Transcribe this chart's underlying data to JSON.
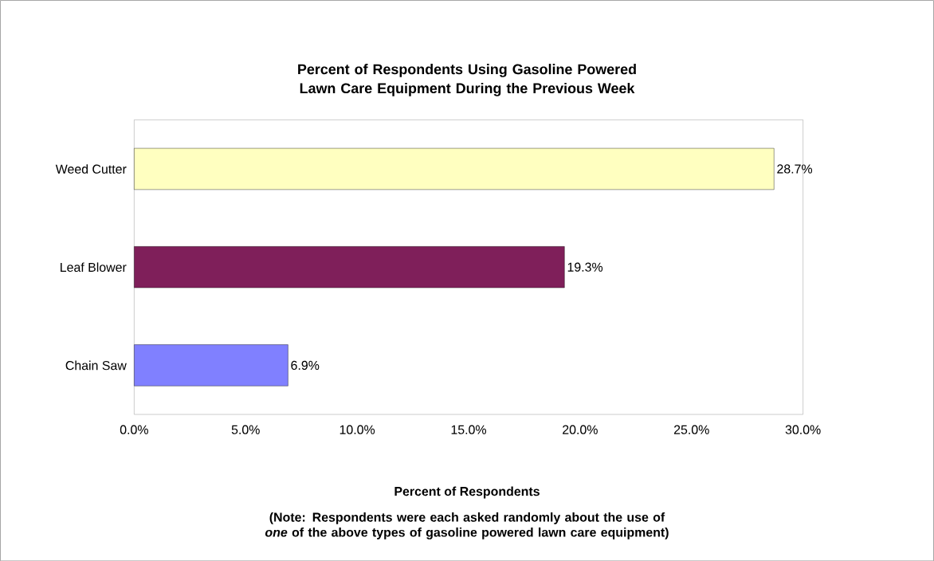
{
  "chart_data": {
    "type": "bar",
    "orientation": "horizontal",
    "title": "Percent of Respondents Using Gasoline Powered Lawn Care Equipment During the Previous Week",
    "xlabel": "Percent of Respondents",
    "annotations": [
      "(Note: Respondents were each asked randomly about the use of *one* of the above types of gasoline powered lawn care equipment)"
    ],
    "categories": [
      "Weed Cutter",
      "Leaf Blower",
      "Chain Saw"
    ],
    "values": [
      28.7,
      19.3,
      6.9
    ],
    "colors": [
      "#ffffc0",
      "#7f1f5a",
      "#8080ff"
    ],
    "value_labels": [
      "28.7%",
      "19.3%",
      "6.9%"
    ],
    "xlim": [
      0,
      30
    ],
    "xticks": [
      {
        "value": 0,
        "label": "0.0%"
      },
      {
        "value": 5,
        "label": "5.0%"
      },
      {
        "value": 10,
        "label": "10.0%"
      },
      {
        "value": 15,
        "label": "15.0%"
      },
      {
        "value": 20,
        "label": "20.0%"
      },
      {
        "value": 25,
        "label": "25.0%"
      },
      {
        "value": 30,
        "label": "30.0%"
      }
    ],
    "grid": false
  }
}
